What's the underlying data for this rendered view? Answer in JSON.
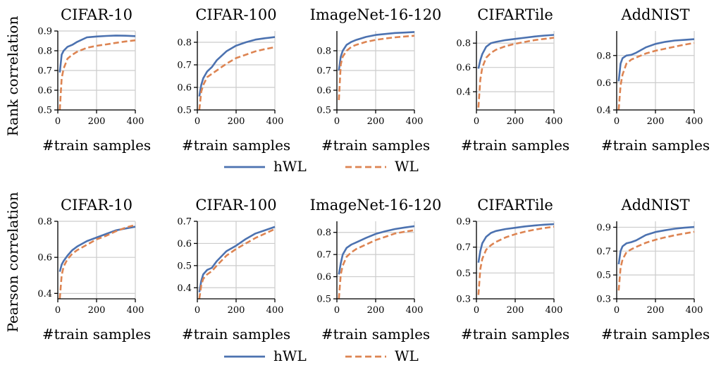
{
  "rows": [
    {
      "ylabel": "Rank correlation",
      "legend": [
        {
          "name": "hWL",
          "color": "#4c72b0",
          "dash": "solid"
        },
        {
          "name": "WL",
          "color": "#dd8452",
          "dash": "dashed"
        }
      ]
    },
    {
      "ylabel": "Pearson correlation",
      "legend": [
        {
          "name": "hWL",
          "color": "#4c72b0",
          "dash": "solid"
        },
        {
          "name": "WL",
          "color": "#dd8452",
          "dash": "dashed"
        }
      ]
    }
  ],
  "chart_data": [
    {
      "type": "line",
      "row": 0,
      "col": 0,
      "title": "CIFAR-10",
      "xlabel": "#train samples",
      "xlim": [
        0,
        400
      ],
      "xticks": [
        0,
        200,
        400
      ],
      "ylim": [
        0.5,
        0.9
      ],
      "yticks": [
        0.5,
        0.6,
        0.7,
        0.8,
        0.9
      ],
      "yticklabels": [
        "0.5",
        "0.6",
        "0.7",
        "0.8",
        "0.9"
      ],
      "grid": true,
      "series": [
        {
          "name": "hWL",
          "color": "#4c72b0",
          "dash": "solid",
          "x": [
            10,
            20,
            30,
            50,
            75,
            100,
            150,
            200,
            250,
            300,
            350,
            400
          ],
          "y": [
            0.69,
            0.78,
            0.8,
            0.82,
            0.83,
            0.845,
            0.868,
            0.872,
            0.875,
            0.877,
            0.876,
            0.874
          ]
        },
        {
          "name": "WL",
          "color": "#dd8452",
          "dash": "dashed",
          "x": [
            10,
            20,
            30,
            50,
            75,
            100,
            150,
            200,
            250,
            300,
            350,
            400
          ],
          "y": [
            0.5,
            0.66,
            0.71,
            0.76,
            0.78,
            0.795,
            0.815,
            0.825,
            0.832,
            0.84,
            0.847,
            0.853
          ]
        }
      ]
    },
    {
      "type": "line",
      "row": 0,
      "col": 1,
      "title": "CIFAR-100",
      "xlabel": "#train samples",
      "xlim": [
        0,
        400
      ],
      "xticks": [
        0,
        200,
        400
      ],
      "ylim": [
        0.5,
        0.85
      ],
      "yticks": [
        0.5,
        0.6,
        0.7,
        0.8
      ],
      "yticklabels": [
        "0.5",
        "0.6",
        "0.7",
        "0.8"
      ],
      "grid": true,
      "series": [
        {
          "name": "hWL",
          "color": "#4c72b0",
          "dash": "solid",
          "x": [
            10,
            20,
            30,
            50,
            75,
            100,
            150,
            200,
            250,
            300,
            350,
            400
          ],
          "y": [
            0.56,
            0.61,
            0.64,
            0.67,
            0.69,
            0.72,
            0.76,
            0.785,
            0.8,
            0.812,
            0.818,
            0.823
          ]
        },
        {
          "name": "WL",
          "color": "#dd8452",
          "dash": "dashed",
          "x": [
            10,
            20,
            30,
            50,
            75,
            100,
            150,
            200,
            250,
            300,
            350,
            400
          ],
          "y": [
            0.5,
            0.58,
            0.61,
            0.645,
            0.66,
            0.675,
            0.705,
            0.73,
            0.745,
            0.76,
            0.77,
            0.778
          ]
        }
      ]
    },
    {
      "type": "line",
      "row": 0,
      "col": 2,
      "title": "ImageNet-16-120",
      "xlabel": "#train samples",
      "xlim": [
        0,
        400
      ],
      "xticks": [
        0,
        200,
        400
      ],
      "ylim": [
        0.5,
        0.9
      ],
      "yticks": [
        0.5,
        0.6,
        0.7,
        0.8
      ],
      "yticklabels": [
        "0.5",
        "0.6",
        "0.7",
        "0.8"
      ],
      "grid": true,
      "series": [
        {
          "name": "hWL",
          "color": "#4c72b0",
          "dash": "solid",
          "x": [
            10,
            20,
            30,
            50,
            75,
            100,
            150,
            200,
            250,
            300,
            350,
            400
          ],
          "y": [
            0.7,
            0.77,
            0.8,
            0.83,
            0.845,
            0.855,
            0.87,
            0.88,
            0.885,
            0.89,
            0.892,
            0.895
          ]
        },
        {
          "name": "WL",
          "color": "#dd8452",
          "dash": "dashed",
          "x": [
            10,
            20,
            30,
            50,
            75,
            100,
            150,
            200,
            250,
            300,
            350,
            400
          ],
          "y": [
            0.55,
            0.73,
            0.77,
            0.8,
            0.82,
            0.83,
            0.845,
            0.855,
            0.862,
            0.868,
            0.872,
            0.876
          ]
        }
      ]
    },
    {
      "type": "line",
      "row": 0,
      "col": 3,
      "title": "CIFARTile",
      "xlabel": "#train samples",
      "xlim": [
        0,
        400
      ],
      "xticks": [
        0,
        200,
        400
      ],
      "ylim": [
        0.25,
        0.9
      ],
      "yticks": [
        0.4,
        0.6,
        0.8
      ],
      "yticklabels": [
        "0.4",
        "0.6",
        "0.8"
      ],
      "grid": true,
      "series": [
        {
          "name": "hWL",
          "color": "#4c72b0",
          "dash": "solid",
          "x": [
            10,
            20,
            30,
            50,
            75,
            100,
            150,
            200,
            250,
            300,
            350,
            400
          ],
          "y": [
            0.59,
            0.66,
            0.71,
            0.77,
            0.8,
            0.81,
            0.825,
            0.835,
            0.845,
            0.855,
            0.862,
            0.868
          ]
        },
        {
          "name": "WL",
          "color": "#dd8452",
          "dash": "dashed",
          "x": [
            10,
            20,
            30,
            50,
            75,
            100,
            150,
            200,
            250,
            300,
            350,
            400
          ],
          "y": [
            0.27,
            0.5,
            0.6,
            0.68,
            0.72,
            0.745,
            0.775,
            0.795,
            0.81,
            0.825,
            0.835,
            0.845
          ]
        }
      ]
    },
    {
      "type": "line",
      "row": 0,
      "col": 4,
      "title": "AddNIST",
      "xlabel": "#train samples",
      "xlim": [
        0,
        400
      ],
      "xticks": [
        0,
        200,
        400
      ],
      "ylim": [
        0.4,
        0.98
      ],
      "yticks": [
        0.4,
        0.6,
        0.8
      ],
      "yticklabels": [
        "0.4",
        "0.6",
        "0.8"
      ],
      "grid": true,
      "series": [
        {
          "name": "hWL",
          "color": "#4c72b0",
          "dash": "solid",
          "x": [
            10,
            20,
            30,
            50,
            75,
            100,
            150,
            200,
            250,
            300,
            350,
            400
          ],
          "y": [
            0.61,
            0.74,
            0.78,
            0.8,
            0.805,
            0.82,
            0.86,
            0.885,
            0.9,
            0.91,
            0.915,
            0.92
          ]
        },
        {
          "name": "WL",
          "color": "#dd8452",
          "dash": "dashed",
          "x": [
            10,
            20,
            30,
            50,
            75,
            100,
            150,
            200,
            250,
            300,
            350,
            400
          ],
          "y": [
            0.4,
            0.58,
            0.66,
            0.74,
            0.77,
            0.785,
            0.815,
            0.835,
            0.85,
            0.865,
            0.88,
            0.892
          ]
        }
      ]
    },
    {
      "type": "line",
      "row": 1,
      "col": 0,
      "title": "CIFAR-10",
      "xlabel": "#train samples",
      "xlim": [
        0,
        400
      ],
      "xticks": [
        0,
        200,
        400
      ],
      "ylim": [
        0.37,
        0.8
      ],
      "yticks": [
        0.4,
        0.6,
        0.8
      ],
      "yticklabels": [
        "0.4",
        "0.6",
        "0.8"
      ],
      "grid": true,
      "series": [
        {
          "name": "hWL",
          "color": "#4c72b0",
          "dash": "solid",
          "x": [
            10,
            20,
            30,
            50,
            75,
            100,
            150,
            200,
            250,
            300,
            350,
            400
          ],
          "y": [
            0.52,
            0.56,
            0.58,
            0.61,
            0.64,
            0.66,
            0.69,
            0.71,
            0.73,
            0.75,
            0.76,
            0.77
          ]
        },
        {
          "name": "WL",
          "color": "#dd8452",
          "dash": "dashed",
          "x": [
            10,
            20,
            30,
            50,
            75,
            100,
            150,
            200,
            250,
            300,
            350,
            400
          ],
          "y": [
            0.37,
            0.5,
            0.55,
            0.59,
            0.62,
            0.64,
            0.67,
            0.7,
            0.72,
            0.745,
            0.765,
            0.78
          ]
        }
      ]
    },
    {
      "type": "line",
      "row": 1,
      "col": 1,
      "title": "CIFAR-100",
      "xlabel": "#train samples",
      "xlim": [
        0,
        400
      ],
      "xticks": [
        0,
        200,
        400
      ],
      "ylim": [
        0.35,
        0.7
      ],
      "yticks": [
        0.4,
        0.5,
        0.6,
        0.7
      ],
      "yticklabels": [
        "0.4",
        "0.5",
        "0.6",
        "0.7"
      ],
      "grid": true,
      "series": [
        {
          "name": "hWL",
          "color": "#4c72b0",
          "dash": "solid",
          "x": [
            10,
            20,
            30,
            50,
            75,
            100,
            150,
            200,
            250,
            300,
            350,
            400
          ],
          "y": [
            0.38,
            0.43,
            0.46,
            0.48,
            0.49,
            0.52,
            0.565,
            0.59,
            0.62,
            0.645,
            0.66,
            0.675
          ]
        },
        {
          "name": "WL",
          "color": "#dd8452",
          "dash": "dashed",
          "x": [
            10,
            20,
            30,
            50,
            75,
            100,
            150,
            200,
            250,
            300,
            350,
            400
          ],
          "y": [
            0.35,
            0.41,
            0.44,
            0.46,
            0.475,
            0.5,
            0.545,
            0.575,
            0.6,
            0.625,
            0.645,
            0.665
          ]
        }
      ]
    },
    {
      "type": "line",
      "row": 1,
      "col": 2,
      "title": "ImageNet-16-120",
      "xlabel": "#train samples",
      "xlim": [
        0,
        400
      ],
      "xticks": [
        0,
        200,
        400
      ],
      "ylim": [
        0.5,
        0.85
      ],
      "yticks": [
        0.5,
        0.6,
        0.7,
        0.8
      ],
      "yticklabels": [
        "0.5",
        "0.6",
        "0.7",
        "0.8"
      ],
      "grid": true,
      "series": [
        {
          "name": "hWL",
          "color": "#4c72b0",
          "dash": "solid",
          "x": [
            10,
            20,
            30,
            50,
            75,
            100,
            150,
            200,
            250,
            300,
            350,
            400
          ],
          "y": [
            0.61,
            0.66,
            0.7,
            0.73,
            0.745,
            0.755,
            0.775,
            0.793,
            0.805,
            0.815,
            0.822,
            0.828
          ]
        },
        {
          "name": "WL",
          "color": "#dd8452",
          "dash": "dashed",
          "x": [
            10,
            20,
            30,
            50,
            75,
            100,
            150,
            200,
            250,
            300,
            350,
            400
          ],
          "y": [
            0.5,
            0.61,
            0.65,
            0.69,
            0.71,
            0.725,
            0.745,
            0.765,
            0.78,
            0.795,
            0.803,
            0.81
          ]
        }
      ]
    },
    {
      "type": "line",
      "row": 1,
      "col": 3,
      "title": "CIFARTile",
      "xlabel": "#train samples",
      "xlim": [
        0,
        400
      ],
      "xticks": [
        0,
        200,
        400
      ],
      "ylim": [
        0.3,
        0.9
      ],
      "yticks": [
        0.3,
        0.5,
        0.7,
        0.9
      ],
      "yticklabels": [
        "0.3",
        "0.5",
        "0.7",
        "0.9"
      ],
      "grid": true,
      "series": [
        {
          "name": "hWL",
          "color": "#4c72b0",
          "dash": "solid",
          "x": [
            10,
            20,
            30,
            50,
            75,
            100,
            150,
            200,
            250,
            300,
            350,
            400
          ],
          "y": [
            0.58,
            0.67,
            0.73,
            0.78,
            0.81,
            0.825,
            0.84,
            0.85,
            0.86,
            0.868,
            0.874,
            0.878
          ]
        },
        {
          "name": "WL",
          "color": "#dd8452",
          "dash": "dashed",
          "x": [
            10,
            20,
            30,
            50,
            75,
            100,
            150,
            200,
            250,
            300,
            350,
            400
          ],
          "y": [
            0.33,
            0.53,
            0.61,
            0.68,
            0.715,
            0.74,
            0.775,
            0.8,
            0.82,
            0.835,
            0.848,
            0.858
          ]
        }
      ]
    },
    {
      "type": "line",
      "row": 1,
      "col": 4,
      "title": "AddNIST",
      "xlabel": "#train samples",
      "xlim": [
        0,
        400
      ],
      "xticks": [
        0,
        200,
        400
      ],
      "ylim": [
        0.3,
        0.95
      ],
      "yticks": [
        0.3,
        0.5,
        0.7,
        0.9
      ],
      "yticklabels": [
        "0.3",
        "0.5",
        "0.7",
        "0.9"
      ],
      "grid": true,
      "series": [
        {
          "name": "hWL",
          "color": "#4c72b0",
          "dash": "solid",
          "x": [
            10,
            20,
            30,
            50,
            75,
            100,
            150,
            200,
            250,
            300,
            350,
            400
          ],
          "y": [
            0.59,
            0.7,
            0.74,
            0.765,
            0.775,
            0.79,
            0.835,
            0.86,
            0.875,
            0.888,
            0.896,
            0.902
          ]
        },
        {
          "name": "WL",
          "color": "#dd8452",
          "dash": "dashed",
          "x": [
            10,
            20,
            30,
            50,
            75,
            100,
            150,
            200,
            250,
            300,
            350,
            400
          ],
          "y": [
            0.37,
            0.56,
            0.63,
            0.69,
            0.715,
            0.735,
            0.77,
            0.795,
            0.815,
            0.833,
            0.848,
            0.862
          ]
        }
      ]
    }
  ]
}
